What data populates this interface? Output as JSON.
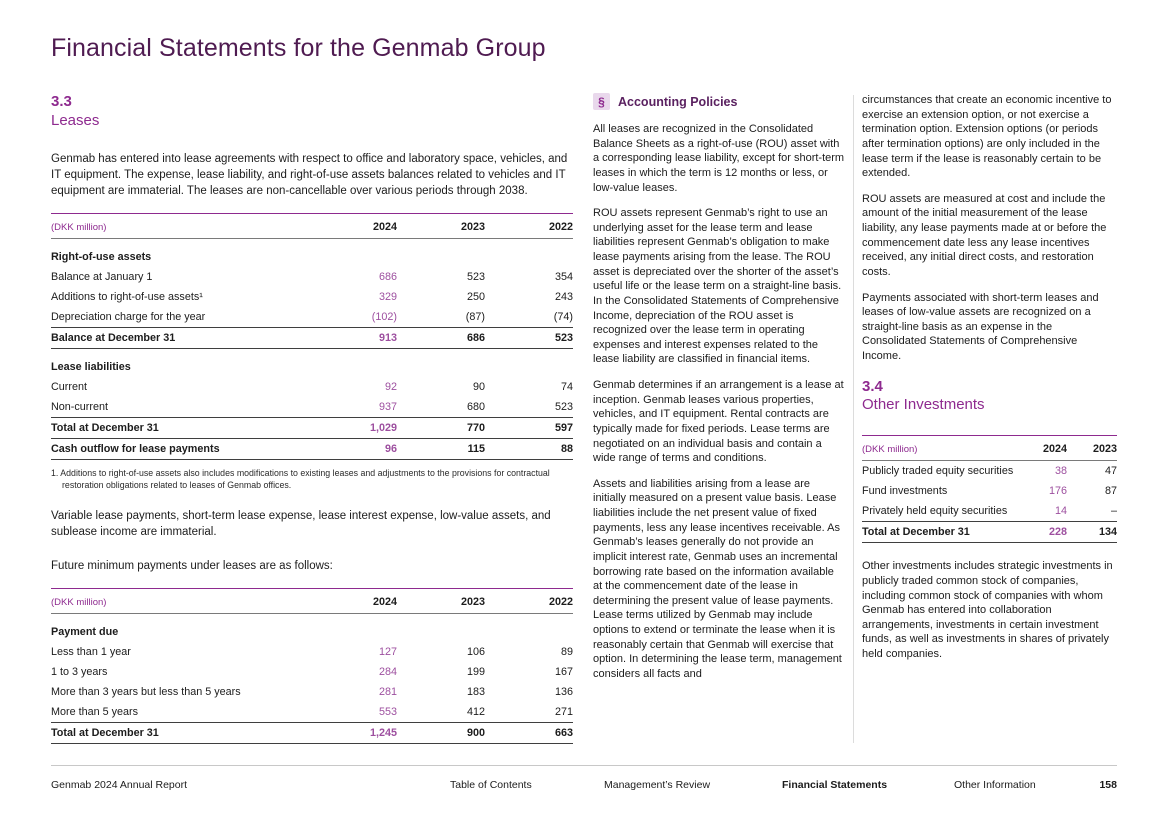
{
  "page": {
    "title": "Financial Statements for the Genmab Group"
  },
  "colors": {
    "accent_purple": "#8e2a8f",
    "accent_number": "#9d4f9f",
    "title_plum": "#4f1b51"
  },
  "section_33": {
    "number": "3.3",
    "title": "Leases",
    "intro": "Genmab has entered into lease agreements with respect to office and laboratory space, vehicles, and IT equipment. The expense, lease liability, and right-of-use assets balances related to vehicles and IT equipment are immaterial. The leases are non-cancellable over various periods through 2038.",
    "footnote": "1. Additions to right-of-use assets also includes modifications to existing leases and adjustments to the provisions for contractual restoration obligations related to leases of Genmab offices.",
    "para_immaterial": "Variable lease payments, short-term lease expense, lease interest expense, low-value assets, and sublease income are immaterial.",
    "para_future": "Future minimum payments under leases are as follows:"
  },
  "tables": {
    "rou": {
      "columns": [
        "(DKK million)",
        "2024",
        "2023",
        "2022"
      ],
      "rows": [
        {
          "label": "Right-of-use assets",
          "type": "section"
        },
        {
          "label": "Balance at January 1",
          "values": [
            "686",
            "523",
            "354"
          ]
        },
        {
          "label": "Additions to right-of-use assets¹",
          "values": [
            "329",
            "250",
            "243"
          ]
        },
        {
          "label": "Depreciation charge for the year",
          "values": [
            "(102)",
            "(87)",
            "(74)"
          ]
        },
        {
          "label": "Balance at December 31",
          "values": [
            "913",
            "686",
            "523"
          ],
          "type": "total"
        },
        {
          "label": "Lease liabilities",
          "type": "section"
        },
        {
          "label": "Current",
          "values": [
            "92",
            "90",
            "74"
          ]
        },
        {
          "label": "Non-current",
          "values": [
            "937",
            "680",
            "523"
          ]
        },
        {
          "label": "Total at December 31",
          "values": [
            "1,029",
            "770",
            "597"
          ],
          "type": "total"
        },
        {
          "label": "Cash outflow for lease payments",
          "values": [
            "96",
            "115",
            "88"
          ],
          "type": "total"
        }
      ]
    },
    "future": {
      "columns": [
        "(DKK million)",
        "2024",
        "2023",
        "2022"
      ],
      "rows": [
        {
          "label": "Payment due",
          "type": "section"
        },
        {
          "label": "Less than 1 year",
          "values": [
            "127",
            "106",
            "89"
          ]
        },
        {
          "label": "1 to 3 years",
          "values": [
            "284",
            "199",
            "167"
          ]
        },
        {
          "label": "More than 3 years but less than 5 years",
          "values": [
            "281",
            "183",
            "136"
          ]
        },
        {
          "label": "More than 5 years",
          "values": [
            "553",
            "412",
            "271"
          ]
        },
        {
          "label": "Total at December 31",
          "values": [
            "1,245",
            "900",
            "663"
          ],
          "type": "total"
        }
      ]
    },
    "other_investments": {
      "columns": [
        "(DKK million)",
        "2024",
        "2023"
      ],
      "rows": [
        {
          "label": "Publicly traded equity securities",
          "values": [
            "38",
            "47"
          ]
        },
        {
          "label": "Fund investments",
          "values": [
            "176",
            "87"
          ]
        },
        {
          "label": "Privately held equity securities",
          "values": [
            "14",
            "–"
          ]
        },
        {
          "label": "Total at December 31",
          "values": [
            "228",
            "134"
          ],
          "type": "total"
        }
      ]
    }
  },
  "policies": {
    "icon": "§",
    "title": "Accounting Policies",
    "paragraphs": [
      "All leases are recognized in the Consolidated Balance Sheets as a right-of-use (ROU) asset with a corresponding lease liability, except for short-term leases in which the term is 12 months or less, or low-value leases.",
      "ROU assets represent Genmab’s right to use an underlying asset for the lease term and lease liabilities represent Genmab’s obligation to make lease payments arising from the lease. The ROU asset is depreciated over the shorter of the asset’s useful life or the lease term on a straight-line basis. In the Consolidated Statements of Comprehensive Income, depreciation of the ROU asset is recognized over the lease term in operating expenses and interest expenses related to the lease liability are classified in financial items.",
      "Genmab determines if an arrangement is a lease at inception. Genmab leases various properties, vehicles, and IT equipment. Rental contracts are typically made for fixed periods. Lease terms are negotiated on an individual basis and contain a wide range of terms and conditions.",
      "Assets and liabilities arising from a lease are initially measured on a present value basis. Lease liabilities include the net present value of fixed payments, less any lease incentives receivable. As Genmab’s leases generally do not provide an implicit interest rate, Genmab uses an incremental borrowing rate based on the information available at the commencement date of the lease in determining the present value of lease payments. Lease terms utilized by Genmab may include options to extend or terminate the lease when it is reasonably certain that Genmab will exercise that option. In determining the lease term, management considers all facts and"
    ]
  },
  "right_column": {
    "paragraphs": [
      "circumstances that create an economic incentive to exercise an extension option, or not exercise a termination option. Extension options (or periods after termination options) are only included in the lease term if the lease is reasonably certain to be extended.",
      "ROU assets are measured at cost and include the amount of the initial measurement of the lease liability, any lease payments made at or before the commencement date less any lease incentives received, any initial direct costs, and restoration costs.",
      "Payments associated with short-term leases and leases of low-value assets are recognized on a straight-line basis as an expense in the Consolidated Statements of Comprehensive Income."
    ]
  },
  "section_34": {
    "number": "3.4",
    "title": "Other Investments",
    "para": "Other investments includes strategic investments in publicly traded common stock of companies, including common stock of companies with whom Genmab has entered into collaboration arrangements, investments in certain investment funds, as well as investments in shares of privately held companies."
  },
  "footer": {
    "brand": "Genmab 2024 Annual Report",
    "nav": [
      "Table of Contents",
      "Management’s Review",
      "Financial Statements",
      "Other Information"
    ],
    "active": "Financial Statements",
    "page": "158"
  }
}
